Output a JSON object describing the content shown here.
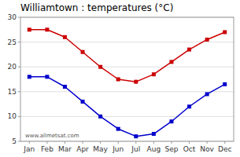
{
  "chart_data": {
    "type": "line",
    "title": "Williamtown : temperatures (°C)",
    "categories": [
      "Jan",
      "Feb",
      "Mar",
      "Apr",
      "May",
      "Jun",
      "Jul",
      "Aug",
      "Sep",
      "Oct",
      "Nov",
      "Dec"
    ],
    "series": [
      {
        "color": "#cc0000",
        "marker": "square",
        "values": [
          27.5,
          27.5,
          26.0,
          23.0,
          20.0,
          17.5,
          17.0,
          18.5,
          21.0,
          23.5,
          25.5,
          27.0
        ]
      },
      {
        "color": "#0000cc",
        "marker": "square",
        "values": [
          18.0,
          18.0,
          16.0,
          13.0,
          10.0,
          7.5,
          6.0,
          6.5,
          9.0,
          12.0,
          14.5,
          16.5
        ]
      }
    ],
    "ylim": [
      5,
      30
    ],
    "yticks": [
      5,
      10,
      15,
      20,
      25,
      30
    ],
    "grid": true,
    "annotations": [
      "www.allmetsat.com"
    ]
  }
}
